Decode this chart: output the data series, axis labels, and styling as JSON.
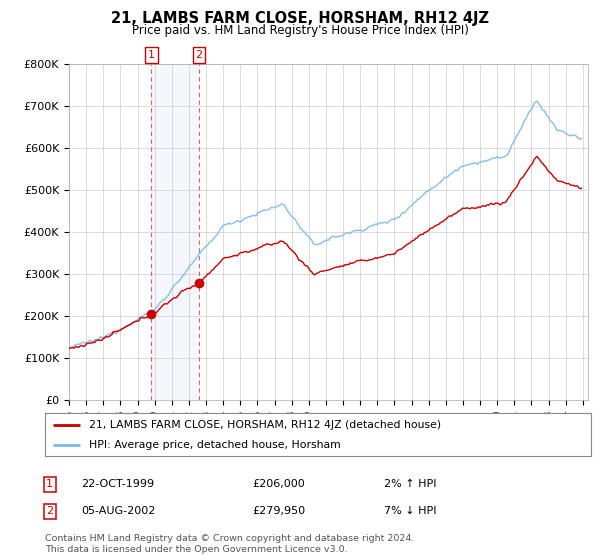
{
  "title": "21, LAMBS FARM CLOSE, HORSHAM, RH12 4JZ",
  "subtitle": "Price paid vs. HM Land Registry's House Price Index (HPI)",
  "ylim": [
    0,
    800000
  ],
  "yticks": [
    0,
    100000,
    200000,
    300000,
    400000,
    500000,
    600000,
    700000,
    800000
  ],
  "ytick_labels": [
    "£0",
    "£100K",
    "£200K",
    "£300K",
    "£400K",
    "£500K",
    "£600K",
    "£700K",
    "£800K"
  ],
  "hpi_color": "#7ab8e8",
  "price_color": "#cc0000",
  "sale1_date": 1999.81,
  "sale1_price": 206000,
  "sale2_date": 2002.59,
  "sale2_price": 279950,
  "legend_label1": "21, LAMBS FARM CLOSE, HORSHAM, RH12 4JZ (detached house)",
  "legend_label2": "HPI: Average price, detached house, Horsham",
  "note1_num": "1",
  "note1_date": "22-OCT-1999",
  "note1_price": "£206,000",
  "note1_hpi": "2% ↑ HPI",
  "note2_num": "2",
  "note2_date": "05-AUG-2002",
  "note2_price": "£279,950",
  "note2_hpi": "7% ↓ HPI",
  "footer": "Contains HM Land Registry data © Crown copyright and database right 2024.\nThis data is licensed under the Open Government Licence v3.0.",
  "bg_color": "#ffffff",
  "plot_bg_color": "#ffffff",
  "grid_color": "#cccccc",
  "shade_color": "#dbeaf7"
}
